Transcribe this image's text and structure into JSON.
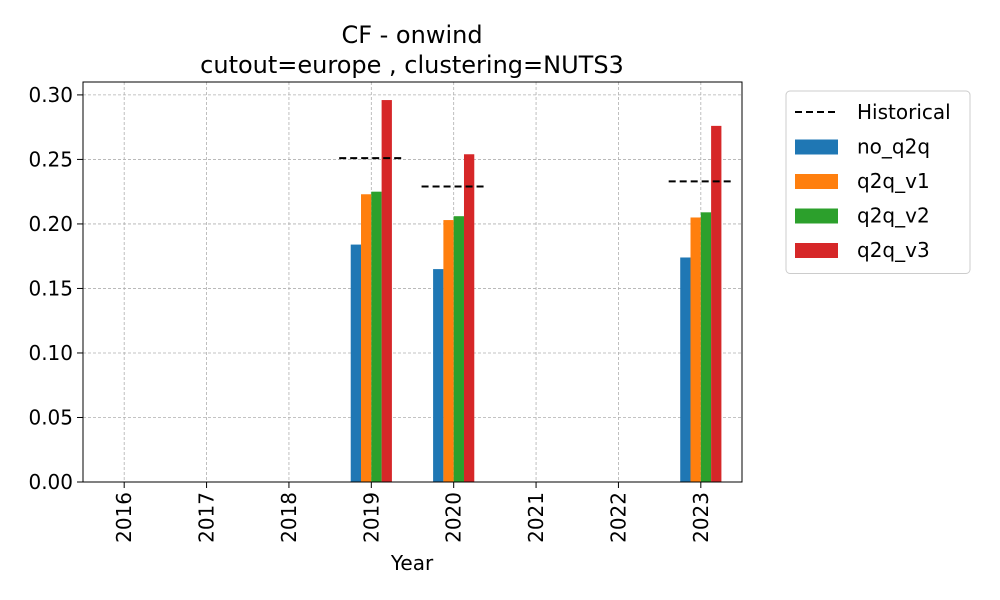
{
  "chart_data": {
    "type": "bar",
    "title": "CF - onwind",
    "subtitle": "cutout=europe , clustering=NUTS3",
    "xlabel": "Year",
    "ylabel": "",
    "categories": [
      "2016",
      "2017",
      "2018",
      "2019",
      "2020",
      "2021",
      "2022",
      "2023"
    ],
    "ylim": [
      0,
      0.31
    ],
    "yticks": [
      "0.00",
      "0.05",
      "0.10",
      "0.15",
      "0.20",
      "0.25",
      "0.30"
    ],
    "grid": true,
    "legend_position": "outside-right",
    "series": [
      {
        "name": "no_q2q",
        "color": "#1f77b4",
        "values": [
          null,
          null,
          null,
          0.184,
          0.165,
          null,
          null,
          0.174
        ]
      },
      {
        "name": "q2q_v1",
        "color": "#ff7f0e",
        "values": [
          null,
          null,
          null,
          0.223,
          0.203,
          null,
          null,
          0.205
        ]
      },
      {
        "name": "q2q_v2",
        "color": "#2ca02c",
        "values": [
          null,
          null,
          null,
          0.225,
          0.206,
          null,
          null,
          0.209
        ]
      },
      {
        "name": "q2q_v3",
        "color": "#d62728",
        "values": [
          null,
          null,
          null,
          0.296,
          0.254,
          null,
          null,
          0.276
        ]
      }
    ],
    "historical": {
      "name": "Historical",
      "color": "#000000",
      "values": [
        null,
        null,
        null,
        0.251,
        0.229,
        null,
        null,
        0.233
      ]
    }
  }
}
